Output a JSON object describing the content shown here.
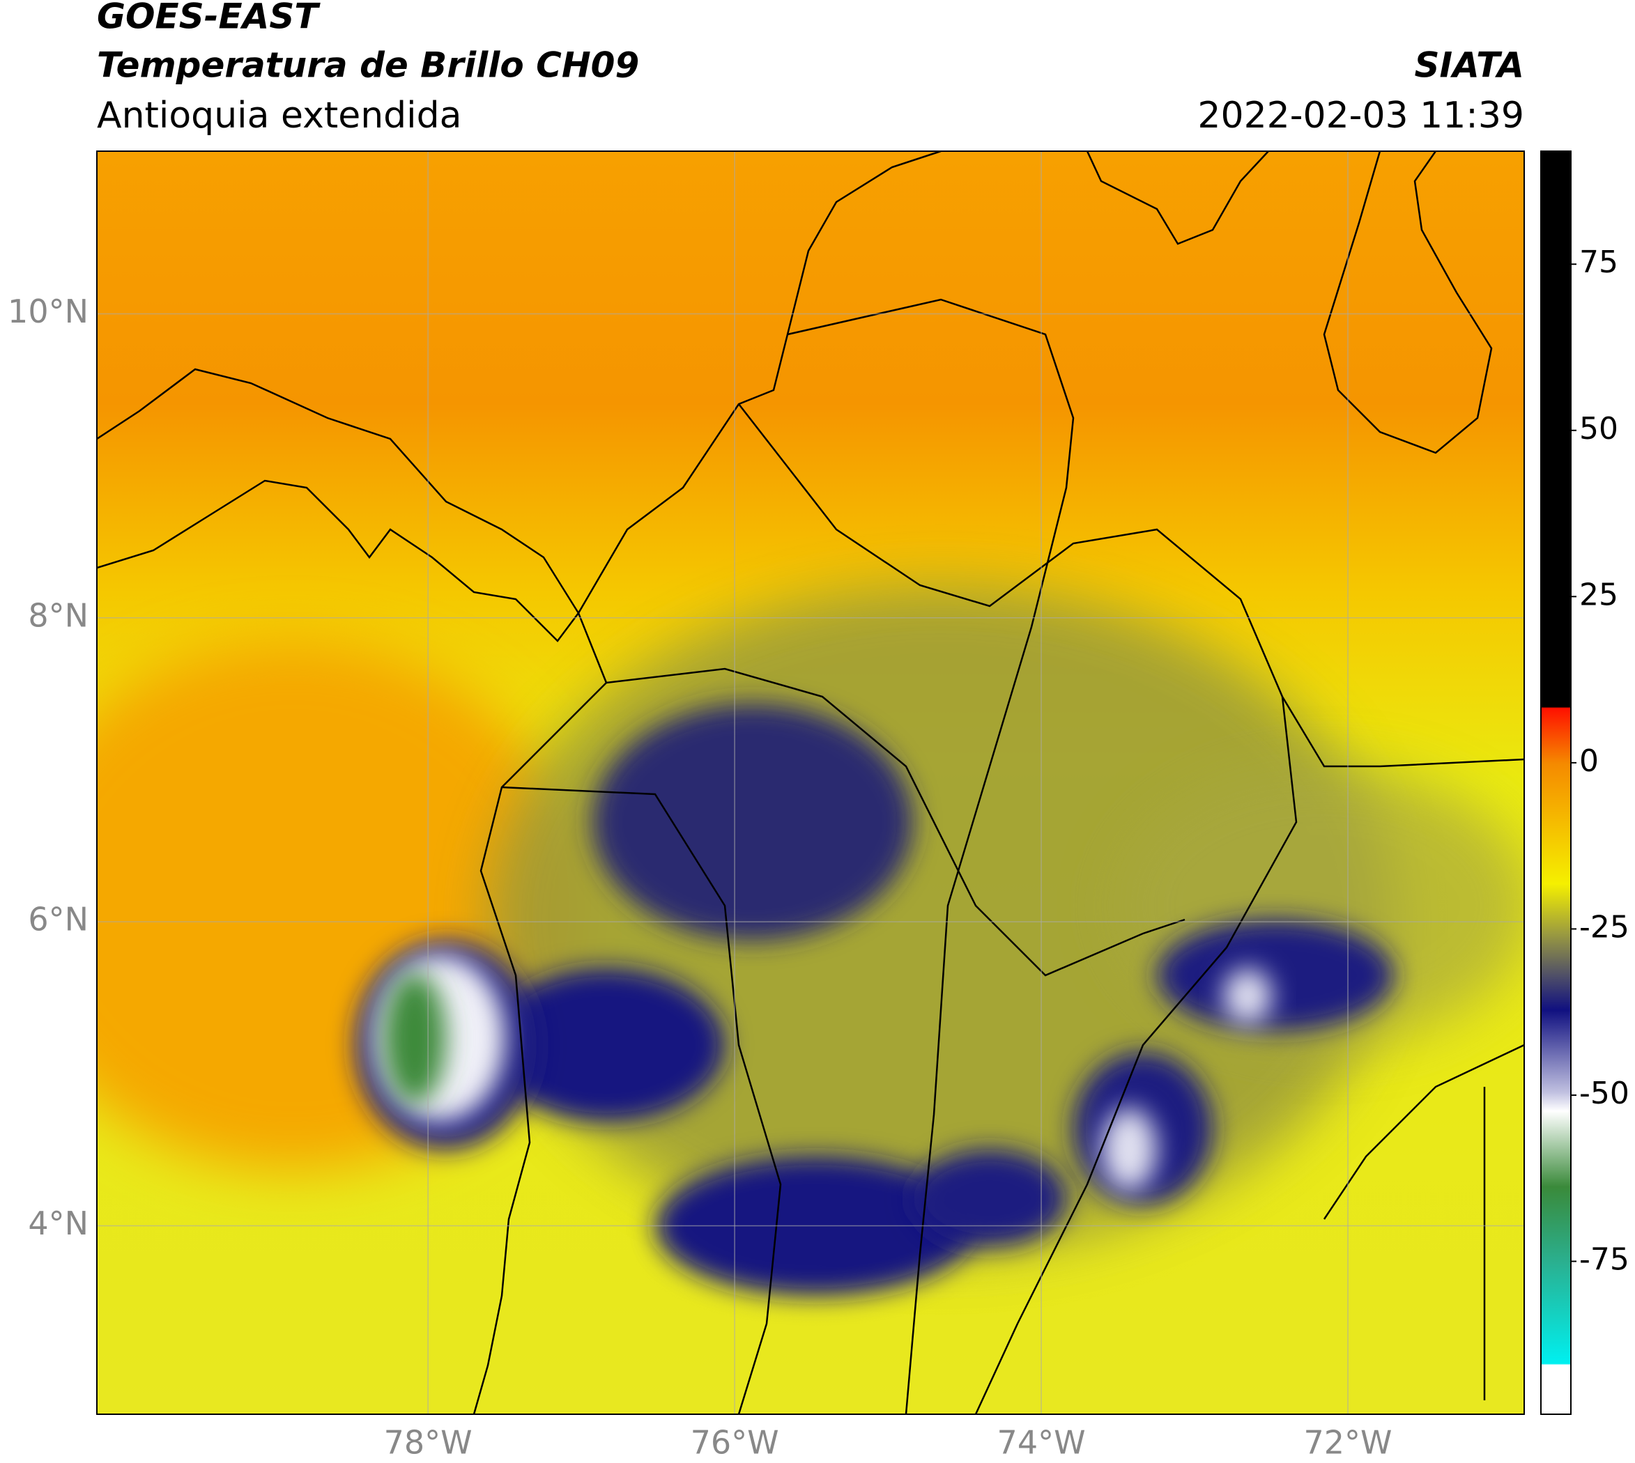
{
  "header": {
    "satellite": "GOES-EAST",
    "product": "Temperatura de Brillo CH09",
    "region": "Antioquia extendida",
    "source": "SIATA",
    "datetime": "2022-02-03 11:39"
  },
  "chart_data": {
    "type": "map",
    "xlim": [
      -80.16,
      -70.85
    ],
    "ylim": [
      2.76,
      11.07
    ],
    "xticks": [
      {
        "value": -78,
        "label": "78°W"
      },
      {
        "value": -76,
        "label": "76°W"
      },
      {
        "value": -74,
        "label": "74°W"
      },
      {
        "value": -72,
        "label": "72°W"
      }
    ],
    "yticks": [
      {
        "value": 10,
        "label": "10°N"
      },
      {
        "value": 8,
        "label": "8°N"
      },
      {
        "value": 6,
        "label": "6°N"
      },
      {
        "value": 4,
        "label": "4°N"
      }
    ],
    "grid": true,
    "colorbar": {
      "lim": [
        -98,
        92
      ],
      "ticks": [
        75,
        50,
        25,
        0,
        -25,
        -50,
        -75
      ]
    }
  }
}
